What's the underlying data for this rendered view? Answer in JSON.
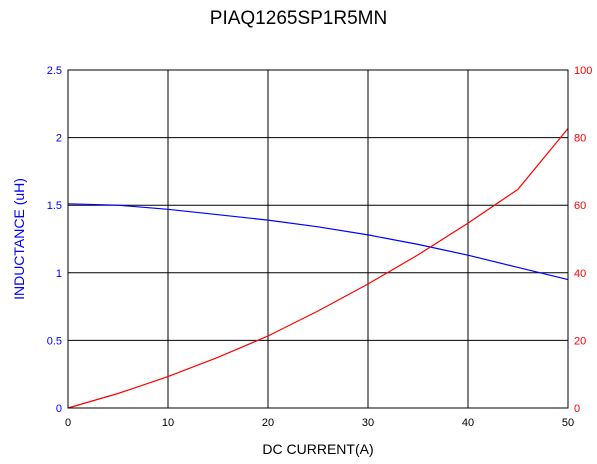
{
  "chart_data": {
    "type": "line",
    "title": "PIAQ1265SP1R5MN",
    "xlabel": "DC CURRENT(A)",
    "ylabel": "INDUCTANCE (uH)",
    "y2label": "",
    "xlim": [
      0,
      50
    ],
    "ylim": [
      0,
      2.5
    ],
    "y2lim": [
      0,
      100
    ],
    "x_ticks": [
      "0",
      "10",
      "20",
      "30",
      "40",
      "50"
    ],
    "y_ticks": [
      "0",
      "0.5",
      "1",
      "1.5",
      "2",
      "2.5"
    ],
    "y2_ticks": [
      "0",
      "20",
      "40",
      "60",
      "80",
      "100"
    ],
    "grid": true,
    "series": [
      {
        "name": "",
        "axis": "left",
        "color": "#0000ff",
        "x": [
          0,
          5,
          10,
          15,
          20,
          25,
          30,
          35,
          40,
          45,
          50
        ],
        "y": [
          1.51,
          1.5,
          1.47,
          1.43,
          1.39,
          1.34,
          1.28,
          1.21,
          1.13,
          1.04,
          0.95
        ]
      },
      {
        "name": "",
        "axis": "right",
        "color": "#ff0000",
        "x": [
          0,
          5,
          10,
          15,
          20,
          25,
          30,
          35,
          40,
          45,
          50
        ],
        "y": [
          0,
          4.3,
          9.3,
          15.0,
          21.3,
          28.7,
          36.7,
          45.3,
          54.7,
          64.7,
          82.7
        ]
      }
    ],
    "colors": {
      "left_axis": "#0000ff",
      "right_axis": "#ff0000",
      "grid": "#000000"
    }
  }
}
